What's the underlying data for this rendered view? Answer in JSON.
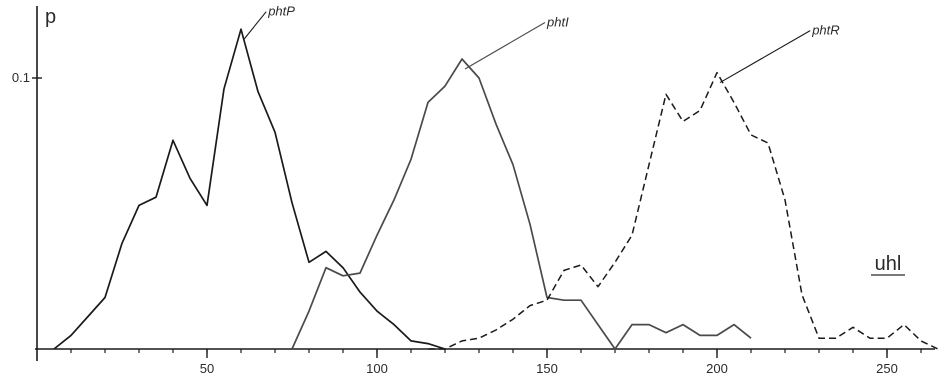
{
  "chart_data": {
    "type": "line",
    "xlabel": "uhl",
    "ylabel": "p",
    "xlim": [
      0,
      270
    ],
    "ylim": [
      0,
      0.122
    ],
    "x_ticks": [
      50,
      100,
      150,
      200,
      250
    ],
    "y_ticks": [
      0.1
    ],
    "y_tick_labels": [
      "0.1"
    ],
    "grid": false,
    "series": [
      {
        "name": "phtP",
        "line_style": "solid",
        "color": "#1a1a1a",
        "x": [
          5,
          10,
          15,
          20,
          25,
          30,
          35,
          40,
          45,
          50,
          55,
          60,
          65,
          70,
          75,
          80,
          85,
          90,
          95,
          100,
          105,
          110,
          115,
          120
        ],
        "y": [
          0,
          0.005,
          0.012,
          0.019,
          0.039,
          0.053,
          0.056,
          0.077,
          0.063,
          0.053,
          0.096,
          0.118,
          0.095,
          0.08,
          0.054,
          0.032,
          0.036,
          0.03,
          0.021,
          0.014,
          0.009,
          0.003,
          0.002,
          0
        ]
      },
      {
        "name": "phtI",
        "line_style": "solid",
        "color": "#4a4a4a",
        "x": [
          75,
          80,
          85,
          90,
          95,
          100,
          105,
          110,
          115,
          120,
          125,
          130,
          135,
          140,
          145,
          150,
          155,
          160,
          165,
          170,
          175,
          180,
          185,
          190,
          195,
          200,
          205,
          210
        ],
        "y": [
          0,
          0.014,
          0.03,
          0.027,
          0.028,
          0.042,
          0.055,
          0.07,
          0.091,
          0.097,
          0.107,
          0.1,
          0.083,
          0.068,
          0.046,
          0.019,
          0.018,
          0.018,
          0.009,
          0,
          0.009,
          0.009,
          0.006,
          0.009,
          0.005,
          0.005,
          0.009,
          0.004
        ]
      },
      {
        "name": "phtR",
        "line_style": "dashed",
        "color": "#1a1a1a",
        "x": [
          115,
          120,
          125,
          130,
          135,
          140,
          145,
          150,
          155,
          160,
          165,
          170,
          175,
          180,
          185,
          190,
          195,
          200,
          205,
          210,
          215,
          220,
          225,
          230,
          235,
          240,
          245,
          250,
          255,
          260,
          265
        ],
        "y": [
          0,
          0,
          0.003,
          0.004,
          0.007,
          0.011,
          0.016,
          0.018,
          0.029,
          0.031,
          0.023,
          0.032,
          0.042,
          0.068,
          0.094,
          0.084,
          0.088,
          0.102,
          0.091,
          0.079,
          0.076,
          0.055,
          0.02,
          0.004,
          0.004,
          0.008,
          0.004,
          0.004,
          0.009,
          0.003,
          0
        ]
      }
    ],
    "labels": [
      {
        "text": "phtP",
        "series": "phtP",
        "x": 68,
        "y": 0.123
      },
      {
        "text": "phtI",
        "series": "phtI",
        "x": 150,
        "y": 0.119
      },
      {
        "text": "phtR",
        "series": "phtR",
        "x": 228,
        "y": 0.116
      }
    ]
  }
}
